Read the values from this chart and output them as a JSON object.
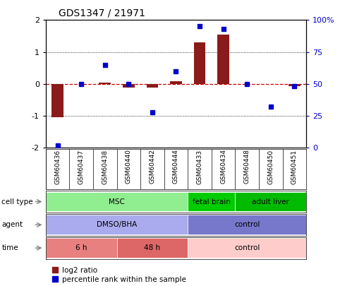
{
  "title": "GDS1347 / 21971",
  "samples": [
    "GSM60436",
    "GSM60437",
    "GSM60438",
    "GSM60440",
    "GSM60442",
    "GSM60444",
    "GSM60433",
    "GSM60434",
    "GSM60448",
    "GSM60450",
    "GSM60451"
  ],
  "log2_ratio": [
    -1.05,
    0.0,
    0.05,
    -0.12,
    -0.12,
    0.08,
    1.3,
    1.55,
    0.0,
    0.0,
    -0.08
  ],
  "percentile": [
    2,
    50,
    65,
    50,
    28,
    60,
    95,
    93,
    50,
    32,
    48
  ],
  "ylim": [
    -2,
    2
  ],
  "y2lim": [
    0,
    100
  ],
  "yticks": [
    -2,
    -1,
    0,
    1,
    2
  ],
  "y2ticks": [
    0,
    25,
    50,
    75,
    100
  ],
  "dotted_lines": [
    -1,
    0,
    1
  ],
  "bar_color": "#8B1A1A",
  "dot_color": "#0000CC",
  "zero_line_color": "#CC0000",
  "cell_type_groups": [
    {
      "label": "MSC",
      "start": 0,
      "end": 5,
      "color": "#90EE90"
    },
    {
      "label": "fetal brain",
      "start": 6,
      "end": 7,
      "color": "#00CC00"
    },
    {
      "label": "adult liver",
      "start": 8,
      "end": 10,
      "color": "#00BB00"
    }
  ],
  "agent_groups": [
    {
      "label": "DMSO/BHA",
      "start": 0,
      "end": 5,
      "color": "#AAAAEE"
    },
    {
      "label": "control",
      "start": 6,
      "end": 10,
      "color": "#7777CC"
    }
  ],
  "time_groups": [
    {
      "label": "6 h",
      "start": 0,
      "end": 2,
      "color": "#E88080"
    },
    {
      "label": "48 h",
      "start": 3,
      "end": 5,
      "color": "#DD6666"
    },
    {
      "label": "control",
      "start": 6,
      "end": 10,
      "color": "#FFCCCC"
    }
  ],
  "row_labels": [
    "cell type",
    "agent",
    "time"
  ],
  "legend_items": [
    {
      "label": "log2 ratio",
      "color": "#8B1A1A"
    },
    {
      "label": "percentile rank within the sample",
      "color": "#0000CC"
    }
  ],
  "arrow_color": "#888888"
}
